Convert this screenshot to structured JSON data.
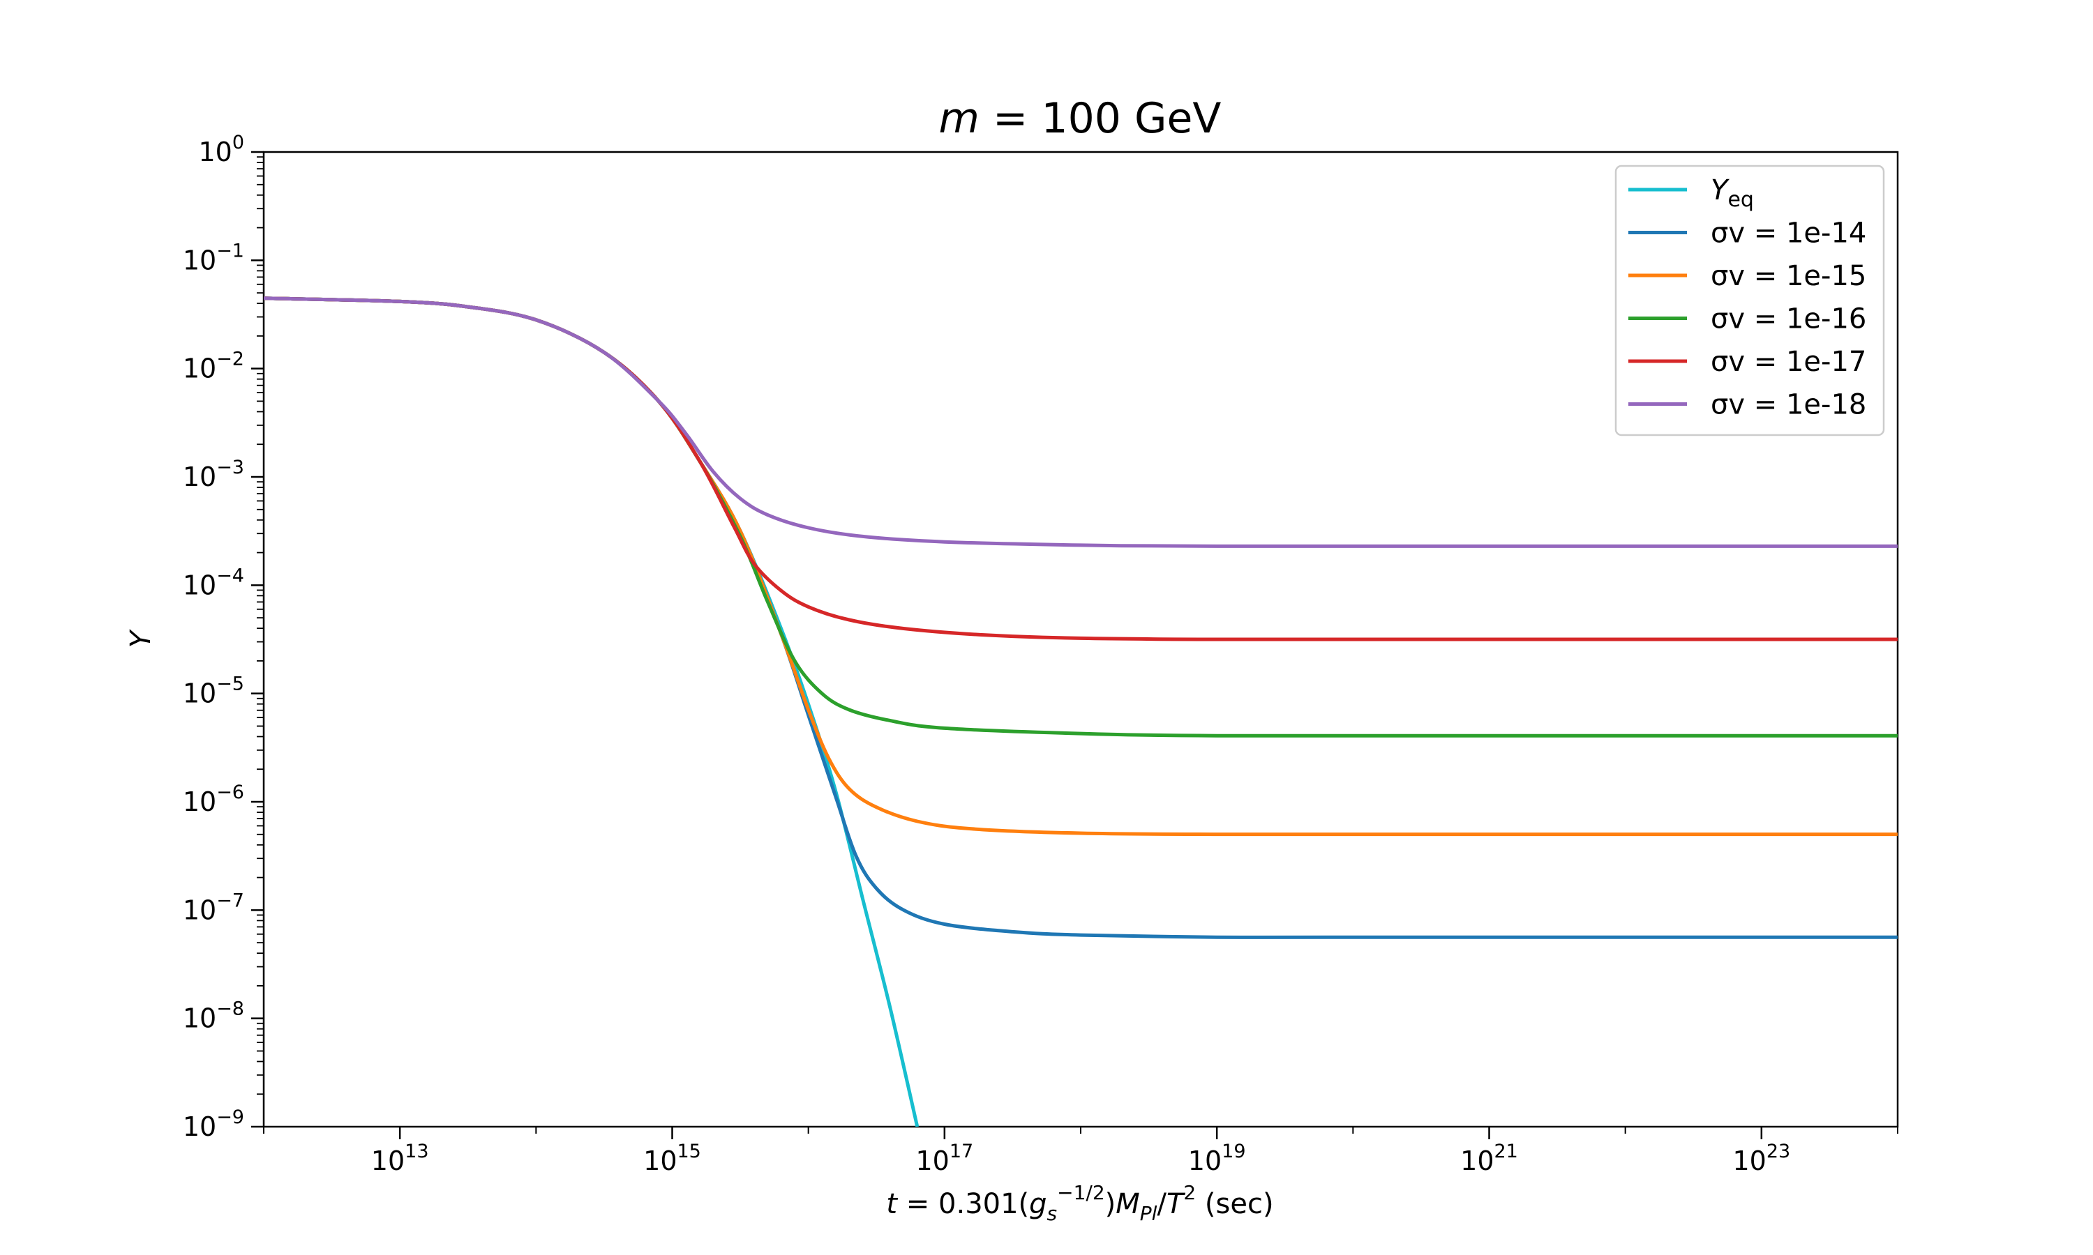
{
  "chart_data": {
    "type": "line",
    "title": "m = 100 GeV",
    "title_parts": {
      "italic": "m",
      "rest": " = 100 GeV"
    },
    "xlabel": "t = 0.301(g_s^{-1/2})M_Pl/T^2 (sec)",
    "xlabel_parts": {
      "t": "t",
      "eq": " = 0.301(",
      "g": "g",
      "g_sub": "s",
      "g_sup": "−1/2",
      "mid": ")",
      "M": "M",
      "M_sub": "Pl",
      "slash": "/",
      "T": "T",
      "T_sup": "2",
      "unit": " (sec)"
    },
    "ylabel": "Y",
    "xscale": "log",
    "yscale": "log",
    "xlim_exp": [
      12,
      24
    ],
    "ylim_exp": [
      -9,
      0
    ],
    "x_ticks": [
      {
        "base": "10",
        "exp": "13",
        "value_exp": 13
      },
      {
        "base": "10",
        "exp": "15",
        "value_exp": 15
      },
      {
        "base": "10",
        "exp": "17",
        "value_exp": 17
      },
      {
        "base": "10",
        "exp": "19",
        "value_exp": 19
      },
      {
        "base": "10",
        "exp": "21",
        "value_exp": 21
      },
      {
        "base": "10",
        "exp": "23",
        "value_exp": 23
      }
    ],
    "y_ticks": [
      {
        "base": "10",
        "exp": "0",
        "value_exp": 0
      },
      {
        "base": "10",
        "exp": "−1",
        "value_exp": -1
      },
      {
        "base": "10",
        "exp": "−2",
        "value_exp": -2
      },
      {
        "base": "10",
        "exp": "−3",
        "value_exp": -3
      },
      {
        "base": "10",
        "exp": "−4",
        "value_exp": -4
      },
      {
        "base": "10",
        "exp": "−5",
        "value_exp": -5
      },
      {
        "base": "10",
        "exp": "−6",
        "value_exp": -6
      },
      {
        "base": "10",
        "exp": "−7",
        "value_exp": -7
      },
      {
        "base": "10",
        "exp": "−8",
        "value_exp": -8
      },
      {
        "base": "10",
        "exp": "−9",
        "value_exp": -9
      }
    ],
    "grid": false,
    "legend_position": "top-right",
    "series": [
      {
        "name": "Y_eq",
        "legend_parts": {
          "main": "Y",
          "sub": "eq"
        },
        "color": "#17becf",
        "points_log10": [
          [
            12.0,
            -1.35
          ],
          [
            13.0,
            -1.38
          ],
          [
            13.5,
            -1.43
          ],
          [
            14.0,
            -1.55
          ],
          [
            14.5,
            -1.85
          ],
          [
            14.9,
            -2.3
          ],
          [
            15.2,
            -2.85
          ],
          [
            15.5,
            -3.5
          ],
          [
            15.8,
            -4.4
          ],
          [
            16.0,
            -5.1
          ],
          [
            16.2,
            -5.9
          ],
          [
            16.4,
            -6.9
          ],
          [
            16.6,
            -7.9
          ],
          [
            16.8,
            -9.0
          ]
        ]
      },
      {
        "name": "σv = 1e-14",
        "color": "#1f77b4",
        "points_log10": [
          [
            12.0,
            -1.35
          ],
          [
            13.0,
            -1.38
          ],
          [
            13.5,
            -1.43
          ],
          [
            14.0,
            -1.55
          ],
          [
            14.5,
            -1.85
          ],
          [
            14.9,
            -2.3
          ],
          [
            15.2,
            -2.85
          ],
          [
            15.5,
            -3.5
          ],
          [
            15.8,
            -4.45
          ],
          [
            16.0,
            -5.2
          ],
          [
            16.2,
            -5.95
          ],
          [
            16.35,
            -6.5
          ],
          [
            16.5,
            -6.8
          ],
          [
            16.7,
            -7.0
          ],
          [
            17.0,
            -7.13
          ],
          [
            17.5,
            -7.2
          ],
          [
            18.0,
            -7.23
          ],
          [
            19.0,
            -7.25
          ],
          [
            20.0,
            -7.25
          ],
          [
            22.0,
            -7.25
          ],
          [
            24.0,
            -7.25
          ]
        ]
      },
      {
        "name": "σv = 1e-15",
        "color": "#ff7f0e",
        "points_log10": [
          [
            12.0,
            -1.35
          ],
          [
            13.0,
            -1.38
          ],
          [
            13.5,
            -1.43
          ],
          [
            14.0,
            -1.55
          ],
          [
            14.5,
            -1.85
          ],
          [
            14.9,
            -2.3
          ],
          [
            15.2,
            -2.85
          ],
          [
            15.5,
            -3.5
          ],
          [
            15.8,
            -4.45
          ],
          [
            16.0,
            -5.15
          ],
          [
            16.15,
            -5.6
          ],
          [
            16.3,
            -5.88
          ],
          [
            16.5,
            -6.05
          ],
          [
            16.8,
            -6.18
          ],
          [
            17.2,
            -6.25
          ],
          [
            18.0,
            -6.29
          ],
          [
            19.0,
            -6.3
          ],
          [
            21.0,
            -6.3
          ],
          [
            24.0,
            -6.3
          ]
        ]
      },
      {
        "name": "σv = 1e-16",
        "color": "#2ca02c",
        "points_log10": [
          [
            12.0,
            -1.35
          ],
          [
            13.0,
            -1.38
          ],
          [
            13.5,
            -1.43
          ],
          [
            14.0,
            -1.55
          ],
          [
            14.5,
            -1.85
          ],
          [
            14.9,
            -2.3
          ],
          [
            15.2,
            -2.85
          ],
          [
            15.5,
            -3.55
          ],
          [
            15.7,
            -4.15
          ],
          [
            15.9,
            -4.7
          ],
          [
            16.1,
            -5.0
          ],
          [
            16.3,
            -5.15
          ],
          [
            16.6,
            -5.25
          ],
          [
            17.0,
            -5.32
          ],
          [
            18.0,
            -5.37
          ],
          [
            19.0,
            -5.39
          ],
          [
            21.0,
            -5.39
          ],
          [
            24.0,
            -5.39
          ]
        ]
      },
      {
        "name": "σv = 1e-17",
        "color": "#d62728",
        "points_log10": [
          [
            12.0,
            -1.35
          ],
          [
            13.0,
            -1.38
          ],
          [
            13.5,
            -1.43
          ],
          [
            14.0,
            -1.55
          ],
          [
            14.5,
            -1.85
          ],
          [
            14.9,
            -2.3
          ],
          [
            15.2,
            -2.85
          ],
          [
            15.45,
            -3.45
          ],
          [
            15.6,
            -3.8
          ],
          [
            15.8,
            -4.05
          ],
          [
            16.0,
            -4.2
          ],
          [
            16.3,
            -4.32
          ],
          [
            16.7,
            -4.4
          ],
          [
            17.3,
            -4.46
          ],
          [
            18.0,
            -4.49
          ],
          [
            19.0,
            -4.5
          ],
          [
            21.0,
            -4.5
          ],
          [
            24.0,
            -4.5
          ]
        ]
      },
      {
        "name": "σv = 1e-18",
        "color": "#9467bd",
        "points_log10": [
          [
            12.0,
            -1.35
          ],
          [
            13.0,
            -1.38
          ],
          [
            13.5,
            -1.43
          ],
          [
            14.0,
            -1.55
          ],
          [
            14.5,
            -1.85
          ],
          [
            14.9,
            -2.3
          ],
          [
            15.1,
            -2.6
          ],
          [
            15.3,
            -2.95
          ],
          [
            15.5,
            -3.2
          ],
          [
            15.7,
            -3.35
          ],
          [
            16.0,
            -3.47
          ],
          [
            16.4,
            -3.55
          ],
          [
            17.0,
            -3.6
          ],
          [
            18.0,
            -3.63
          ],
          [
            19.0,
            -3.64
          ],
          [
            21.0,
            -3.64
          ],
          [
            24.0,
            -3.64
          ]
        ]
      }
    ]
  }
}
